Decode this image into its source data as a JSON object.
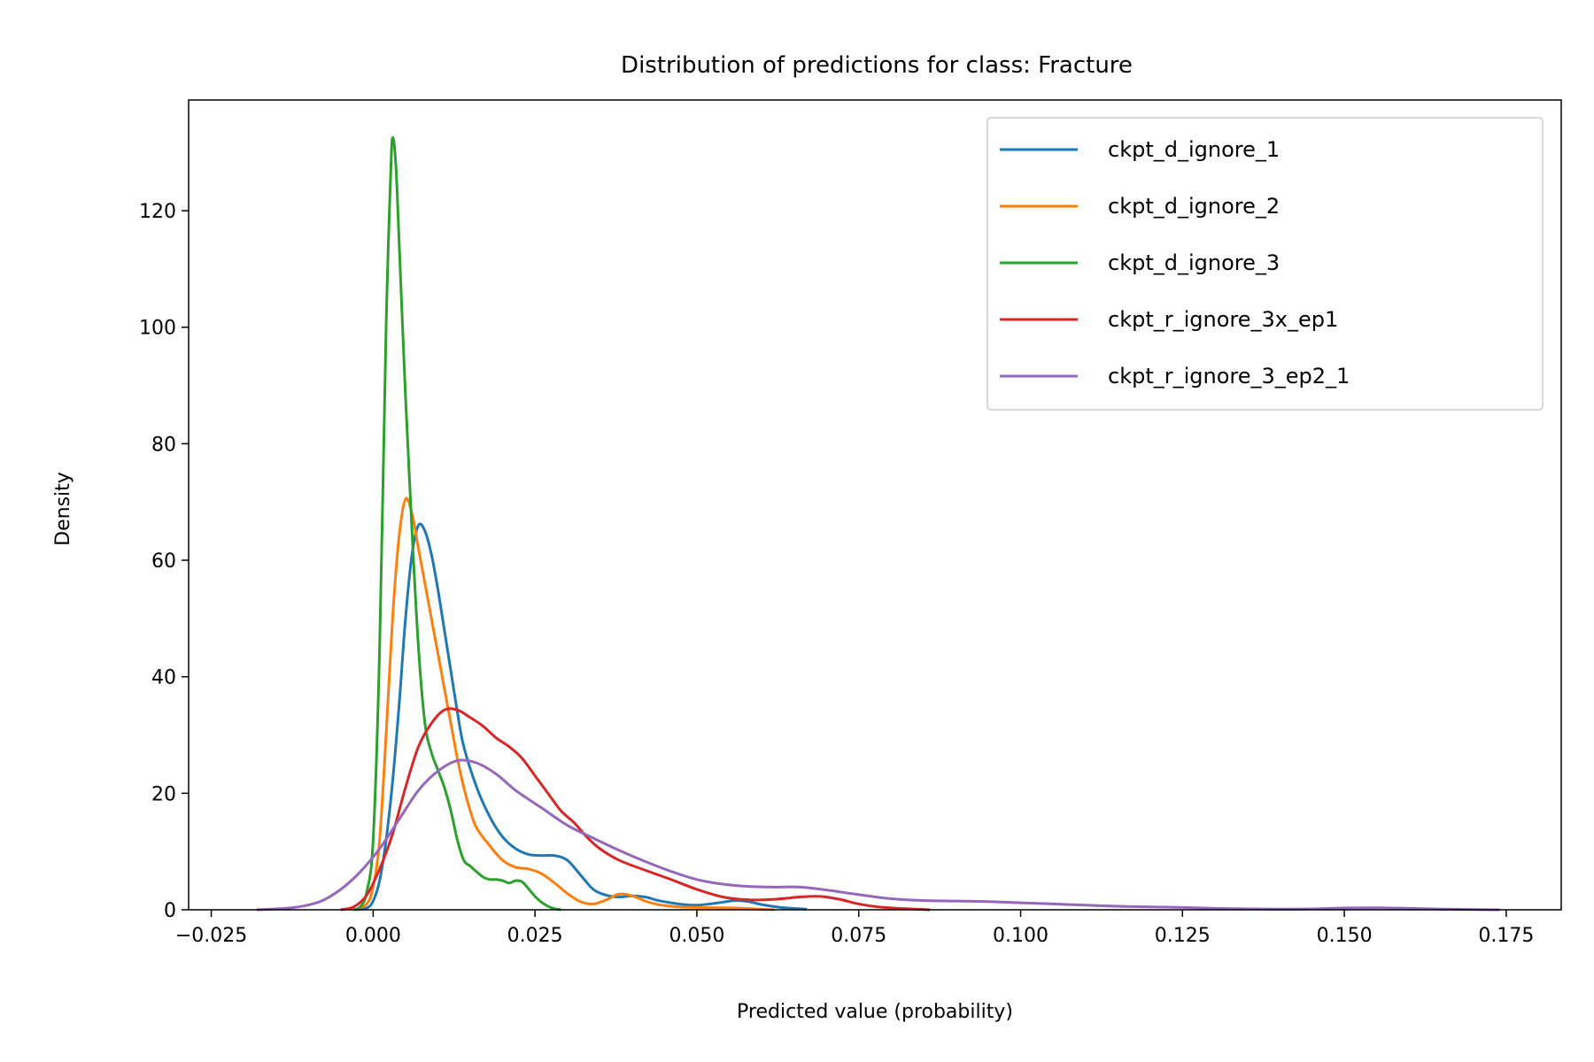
{
  "chart_data": {
    "type": "line",
    "title": "Distribution of predictions for class: Fracture",
    "xlabel": "Predicted value (probability)",
    "ylabel": "Density",
    "xlim": [
      -0.0285,
      0.1835
    ],
    "ylim": [
      0,
      139
    ],
    "xticks": [
      -0.025,
      0.0,
      0.025,
      0.05,
      0.075,
      0.1,
      0.125,
      0.15,
      0.175
    ],
    "xtick_labels": [
      "−0.025",
      "0.000",
      "0.025",
      "0.050",
      "0.075",
      "0.100",
      "0.125",
      "0.150",
      "0.175"
    ],
    "yticks": [
      0,
      20,
      40,
      60,
      80,
      100,
      120
    ],
    "ytick_labels": [
      "0",
      "20",
      "40",
      "60",
      "80",
      "100",
      "120"
    ],
    "grid": false,
    "legend_position": "top-right",
    "series": [
      {
        "name": "ckpt_d_ignore_1",
        "color": "#1f77b4",
        "points": [
          [
            -0.003,
            0
          ],
          [
            -0.001,
            0.3
          ],
          [
            0.0,
            1.5
          ],
          [
            0.001,
            5
          ],
          [
            0.002,
            12
          ],
          [
            0.003,
            22
          ],
          [
            0.004,
            35
          ],
          [
            0.005,
            50
          ],
          [
            0.006,
            61
          ],
          [
            0.007,
            66
          ],
          [
            0.008,
            65
          ],
          [
            0.009,
            61
          ],
          [
            0.01,
            55
          ],
          [
            0.011,
            48
          ],
          [
            0.012,
            41
          ],
          [
            0.013,
            34
          ],
          [
            0.014,
            28
          ],
          [
            0.016,
            21
          ],
          [
            0.018,
            16
          ],
          [
            0.02,
            12.5
          ],
          [
            0.022,
            10.5
          ],
          [
            0.024,
            9.5
          ],
          [
            0.026,
            9.3
          ],
          [
            0.028,
            9.3
          ],
          [
            0.03,
            8.5
          ],
          [
            0.032,
            6
          ],
          [
            0.034,
            3.5
          ],
          [
            0.036,
            2.5
          ],
          [
            0.038,
            2.2
          ],
          [
            0.04,
            2.4
          ],
          [
            0.042,
            2.2
          ],
          [
            0.044,
            1.6
          ],
          [
            0.046,
            1.2
          ],
          [
            0.048,
            0.9
          ],
          [
            0.05,
            0.8
          ],
          [
            0.052,
            1.0
          ],
          [
            0.054,
            1.3
          ],
          [
            0.056,
            1.6
          ],
          [
            0.058,
            1.4
          ],
          [
            0.06,
            0.9
          ],
          [
            0.063,
            0.4
          ],
          [
            0.067,
            0.1
          ]
        ]
      },
      {
        "name": "ckpt_d_ignore_2",
        "color": "#ff7f0e",
        "points": [
          [
            -0.003,
            0
          ],
          [
            -0.001,
            1
          ],
          [
            0.0,
            4
          ],
          [
            0.001,
            12
          ],
          [
            0.002,
            30
          ],
          [
            0.003,
            50
          ],
          [
            0.004,
            64
          ],
          [
            0.005,
            70.5
          ],
          [
            0.006,
            68
          ],
          [
            0.007,
            62
          ],
          [
            0.008,
            56
          ],
          [
            0.009,
            50
          ],
          [
            0.01,
            44
          ],
          [
            0.011,
            38
          ],
          [
            0.012,
            32
          ],
          [
            0.013,
            26
          ],
          [
            0.014,
            21
          ],
          [
            0.015,
            17
          ],
          [
            0.016,
            14
          ],
          [
            0.018,
            11
          ],
          [
            0.02,
            8.5
          ],
          [
            0.022,
            7.3
          ],
          [
            0.024,
            7
          ],
          [
            0.026,
            6.2
          ],
          [
            0.028,
            4.6
          ],
          [
            0.03,
            2.8
          ],
          [
            0.032,
            1.4
          ],
          [
            0.034,
            1.0
          ],
          [
            0.036,
            1.7
          ],
          [
            0.038,
            2.7
          ],
          [
            0.04,
            2.4
          ],
          [
            0.042,
            1.5
          ],
          [
            0.044,
            0.9
          ],
          [
            0.046,
            0.6
          ],
          [
            0.048,
            0.45
          ],
          [
            0.05,
            0.4
          ],
          [
            0.053,
            0.35
          ],
          [
            0.056,
            0.3
          ],
          [
            0.06,
            0.1
          ],
          [
            0.062,
            0.0
          ]
        ]
      },
      {
        "name": "ckpt_d_ignore_3",
        "color": "#2ca02c",
        "points": [
          [
            -0.003,
            0
          ],
          [
            -0.002,
            0.5
          ],
          [
            -0.001,
            3
          ],
          [
            0.0,
            12
          ],
          [
            0.001,
            45
          ],
          [
            0.002,
            100
          ],
          [
            0.0027,
            126
          ],
          [
            0.003,
            132.5
          ],
          [
            0.0035,
            128
          ],
          [
            0.004,
            115
          ],
          [
            0.005,
            88
          ],
          [
            0.006,
            65
          ],
          [
            0.007,
            45
          ],
          [
            0.008,
            32
          ],
          [
            0.009,
            27
          ],
          [
            0.01,
            24
          ],
          [
            0.011,
            21
          ],
          [
            0.012,
            17
          ],
          [
            0.013,
            12
          ],
          [
            0.014,
            8.5
          ],
          [
            0.015,
            7.5
          ],
          [
            0.016,
            6.5
          ],
          [
            0.017,
            5.6
          ],
          [
            0.018,
            5.2
          ],
          [
            0.019,
            5.2
          ],
          [
            0.02,
            5.0
          ],
          [
            0.021,
            4.6
          ],
          [
            0.022,
            5.0
          ],
          [
            0.023,
            4.8
          ],
          [
            0.024,
            3.6
          ],
          [
            0.025,
            2.3
          ],
          [
            0.026,
            1.3
          ],
          [
            0.027,
            0.6
          ],
          [
            0.028,
            0.2
          ],
          [
            0.029,
            0.0
          ]
        ]
      },
      {
        "name": "ckpt_r_ignore_3x_ep1",
        "color": "#d62728",
        "points": [
          [
            -0.005,
            0
          ],
          [
            -0.003,
            0.5
          ],
          [
            -0.001,
            2.5
          ],
          [
            0.001,
            7
          ],
          [
            0.003,
            13
          ],
          [
            0.005,
            21
          ],
          [
            0.007,
            28
          ],
          [
            0.009,
            32
          ],
          [
            0.011,
            34.3
          ],
          [
            0.013,
            34.3
          ],
          [
            0.015,
            33
          ],
          [
            0.017,
            31.5
          ],
          [
            0.019,
            29.5
          ],
          [
            0.021,
            28
          ],
          [
            0.023,
            26
          ],
          [
            0.025,
            23
          ],
          [
            0.027,
            20
          ],
          [
            0.029,
            17
          ],
          [
            0.031,
            15
          ],
          [
            0.033,
            12.5
          ],
          [
            0.035,
            10.5
          ],
          [
            0.038,
            8.5
          ],
          [
            0.042,
            6.8
          ],
          [
            0.046,
            5.2
          ],
          [
            0.05,
            3.5
          ],
          [
            0.054,
            2.2
          ],
          [
            0.058,
            1.7
          ],
          [
            0.062,
            1.8
          ],
          [
            0.066,
            2.2
          ],
          [
            0.069,
            2.3
          ],
          [
            0.072,
            1.8
          ],
          [
            0.075,
            1.0
          ],
          [
            0.078,
            0.5
          ],
          [
            0.082,
            0.2
          ],
          [
            0.086,
            0.0
          ]
        ]
      },
      {
        "name": "ckpt_r_ignore_3_ep2_1",
        "color": "#9467bd",
        "points": [
          [
            -0.018,
            0
          ],
          [
            -0.014,
            0.2
          ],
          [
            -0.011,
            0.6
          ],
          [
            -0.008,
            1.5
          ],
          [
            -0.005,
            3.5
          ],
          [
            -0.002,
            6.5
          ],
          [
            0.001,
            10.5
          ],
          [
            0.004,
            15.5
          ],
          [
            0.007,
            20.5
          ],
          [
            0.01,
            23.8
          ],
          [
            0.013,
            25.6
          ],
          [
            0.016,
            25.2
          ],
          [
            0.019,
            23.3
          ],
          [
            0.022,
            20.5
          ],
          [
            0.026,
            17.5
          ],
          [
            0.03,
            14.5
          ],
          [
            0.034,
            12.3
          ],
          [
            0.038,
            10.2
          ],
          [
            0.042,
            8.3
          ],
          [
            0.046,
            6.6
          ],
          [
            0.05,
            5.2
          ],
          [
            0.054,
            4.4
          ],
          [
            0.058,
            4.0
          ],
          [
            0.062,
            3.9
          ],
          [
            0.066,
            3.9
          ],
          [
            0.07,
            3.4
          ],
          [
            0.075,
            2.6
          ],
          [
            0.08,
            1.9
          ],
          [
            0.085,
            1.6
          ],
          [
            0.09,
            1.5
          ],
          [
            0.095,
            1.4
          ],
          [
            0.1,
            1.2
          ],
          [
            0.105,
            1.0
          ],
          [
            0.11,
            0.8
          ],
          [
            0.115,
            0.6
          ],
          [
            0.12,
            0.5
          ],
          [
            0.125,
            0.4
          ],
          [
            0.13,
            0.25
          ],
          [
            0.135,
            0.15
          ],
          [
            0.14,
            0.12
          ],
          [
            0.145,
            0.15
          ],
          [
            0.15,
            0.3
          ],
          [
            0.155,
            0.35
          ],
          [
            0.16,
            0.25
          ],
          [
            0.165,
            0.12
          ],
          [
            0.17,
            0.04
          ],
          [
            0.174,
            0.0
          ]
        ]
      }
    ]
  }
}
